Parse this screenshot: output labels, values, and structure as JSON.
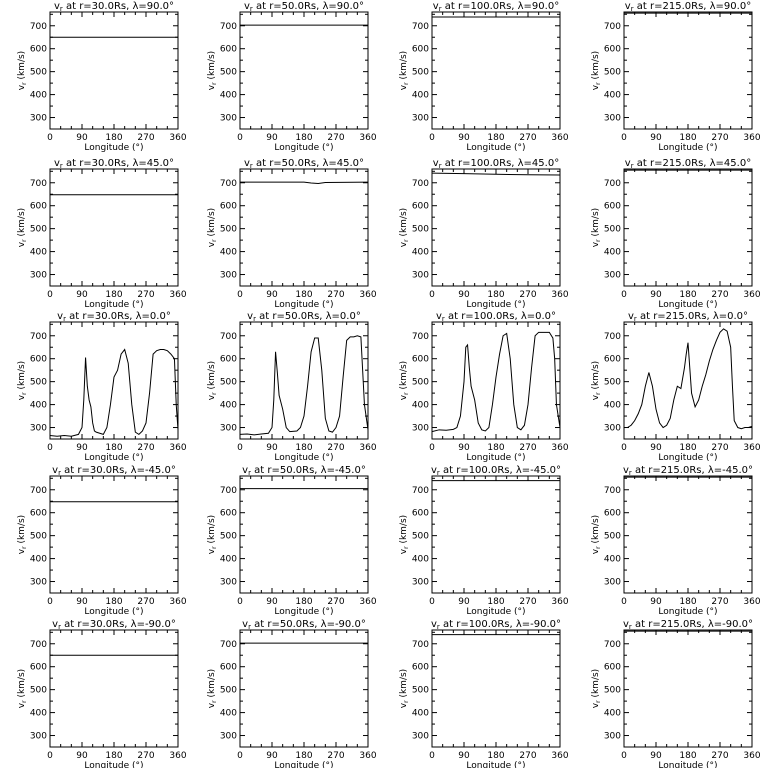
{
  "chart_data": {
    "type": "line",
    "x_label": "Longitude (°)",
    "y_label": "v",
    "y_label_subscript": "r",
    "y_label_units": " (km/s)",
    "xlim": [
      0,
      360
    ],
    "ylim": [
      250,
      760
    ],
    "x_ticks": [
      0,
      90,
      180,
      270,
      360
    ],
    "y_ticks": [
      300,
      400,
      500,
      600,
      700
    ],
    "panels": [
      {
        "title": "v",
        "title_sub": "r",
        "title_rest": " at r=30.0Rs, λ=90.0°",
        "x": [
          0,
          360
        ],
        "y": [
          650,
          650
        ]
      },
      {
        "title": "v",
        "title_sub": "r",
        "title_rest": " at r=50.0Rs, λ=90.0°",
        "x": [
          0,
          360
        ],
        "y": [
          703,
          703
        ]
      },
      {
        "title": "v",
        "title_sub": "r",
        "title_rest": " at r=100.0Rs, λ=90.0°",
        "x": [
          0,
          360
        ],
        "y": [
          738,
          738
        ]
      },
      {
        "title": "v",
        "title_sub": "r",
        "title_rest": " at r=215.0Rs, λ=90.0°",
        "x": [
          0,
          360
        ],
        "y": [
          755,
          755
        ]
      },
      {
        "title": "v",
        "title_sub": "r",
        "title_rest": " at r=30.0Rs, λ=45.0°",
        "x": [
          0,
          360
        ],
        "y": [
          648,
          648
        ]
      },
      {
        "title": "v",
        "title_sub": "r",
        "title_rest": " at r=50.0Rs, λ=45.0°",
        "x": [
          0,
          180,
          200,
          220,
          240,
          360
        ],
        "y": [
          703,
          703,
          699,
          697,
          701,
          703
        ]
      },
      {
        "title": "v",
        "title_sub": "r",
        "title_rest": " at r=100.0Rs, λ=45.0°",
        "x": [
          0,
          90,
          180,
          270,
          360
        ],
        "y": [
          742,
          740,
          737,
          735,
          734
        ]
      },
      {
        "title": "v",
        "title_sub": "r",
        "title_rest": " at r=215.0Rs, λ=45.0°",
        "x": [
          0,
          360
        ],
        "y": [
          755,
          755
        ]
      },
      {
        "title": "v",
        "title_sub": "r",
        "title_rest": " at r=30.0Rs, λ=0.0°",
        "x": [
          0,
          20,
          40,
          60,
          80,
          90,
          95,
          100,
          105,
          110,
          115,
          120,
          125,
          130,
          150,
          160,
          170,
          180,
          190,
          200,
          210,
          220,
          230,
          240,
          250,
          260,
          270,
          280,
          290,
          300,
          310,
          320,
          330,
          340,
          350,
          355,
          360
        ],
        "y": [
          265,
          262,
          265,
          262,
          270,
          300,
          420,
          605,
          480,
          420,
          390,
          320,
          285,
          280,
          270,
          300,
          400,
          520,
          550,
          620,
          640,
          580,
          400,
          280,
          270,
          285,
          320,
          450,
          620,
          635,
          640,
          640,
          635,
          620,
          600,
          400,
          290
        ]
      },
      {
        "title": "v",
        "title_sub": "r",
        "title_rest": " at r=50.0Rs, λ=0.0°",
        "x": [
          0,
          20,
          40,
          60,
          80,
          90,
          95,
          100,
          105,
          110,
          120,
          130,
          140,
          160,
          170,
          180,
          190,
          200,
          210,
          220,
          230,
          240,
          250,
          260,
          270,
          280,
          290,
          300,
          310,
          320,
          330,
          340,
          350,
          360
        ],
        "y": [
          270,
          272,
          268,
          272,
          275,
          300,
          420,
          630,
          540,
          440,
          380,
          300,
          282,
          285,
          300,
          350,
          480,
          630,
          690,
          690,
          550,
          340,
          285,
          280,
          300,
          350,
          520,
          680,
          695,
          695,
          700,
          695,
          400,
          290
        ]
      },
      {
        "title": "v",
        "title_sub": "r",
        "title_rest": " at r=100.0Rs, λ=0.0°",
        "x": [
          0,
          20,
          40,
          60,
          70,
          80,
          90,
          95,
          100,
          105,
          110,
          120,
          130,
          140,
          150,
          160,
          170,
          180,
          190,
          200,
          210,
          220,
          230,
          240,
          250,
          260,
          270,
          280,
          290,
          300,
          310,
          320,
          330,
          340,
          345,
          350,
          360
        ],
        "y": [
          282,
          290,
          288,
          292,
          300,
          350,
          500,
          650,
          660,
          560,
          480,
          420,
          320,
          290,
          285,
          300,
          400,
          520,
          620,
          700,
          710,
          600,
          400,
          300,
          290,
          310,
          400,
          560,
          700,
          715,
          715,
          715,
          715,
          690,
          600,
          400,
          300
        ]
      },
      {
        "title": "v",
        "title_sub": "r",
        "title_rest": " at r=215.0Rs, λ=0.0°",
        "x": [
          0,
          10,
          20,
          30,
          40,
          50,
          60,
          70,
          80,
          90,
          100,
          110,
          120,
          130,
          140,
          150,
          160,
          170,
          175,
          180,
          190,
          200,
          210,
          220,
          230,
          240,
          250,
          260,
          270,
          280,
          290,
          300,
          305,
          310,
          320,
          330,
          340,
          350,
          360
        ],
        "y": [
          300,
          300,
          310,
          330,
          360,
          400,
          480,
          540,
          480,
          380,
          320,
          300,
          310,
          340,
          420,
          480,
          470,
          560,
          620,
          670,
          450,
          390,
          420,
          480,
          530,
          590,
          640,
          680,
          715,
          730,
          720,
          650,
          480,
          330,
          300,
          295,
          300,
          300,
          305
        ]
      },
      {
        "title": "v",
        "title_sub": "r",
        "title_rest": " at r=30.0Rs, λ=-45.0°",
        "x": [
          0,
          360
        ],
        "y": [
          648,
          648
        ]
      },
      {
        "title": "v",
        "title_sub": "r",
        "title_rest": " at r=50.0Rs, λ=-45.0°",
        "x": [
          0,
          360
        ],
        "y": [
          705,
          705
        ]
      },
      {
        "title": "v",
        "title_sub": "r",
        "title_rest": " at r=100.0Rs, λ=-45.0°",
        "x": [
          0,
          360
        ],
        "y": [
          740,
          740
        ]
      },
      {
        "title": "v",
        "title_sub": "r",
        "title_rest": " at r=215.0Rs, λ=-45.0°",
        "x": [
          0,
          360
        ],
        "y": [
          755,
          755
        ]
      },
      {
        "title": "v",
        "title_sub": "r",
        "title_rest": " at r=30.0Rs, λ=-90.0°",
        "x": [
          0,
          360
        ],
        "y": [
          650,
          650
        ]
      },
      {
        "title": "v",
        "title_sub": "r",
        "title_rest": " at r=50.0Rs, λ=-90.0°",
        "x": [
          0,
          360
        ],
        "y": [
          703,
          703
        ]
      },
      {
        "title": "v",
        "title_sub": "r",
        "title_rest": " at r=100.0Rs, λ=-90.0°",
        "x": [
          0,
          360
        ],
        "y": [
          740,
          740
        ]
      },
      {
        "title": "v",
        "title_sub": "r",
        "title_rest": " at r=215.0Rs, λ=-90.0°",
        "x": [
          0,
          360
        ],
        "y": [
          755,
          755
        ]
      }
    ]
  }
}
